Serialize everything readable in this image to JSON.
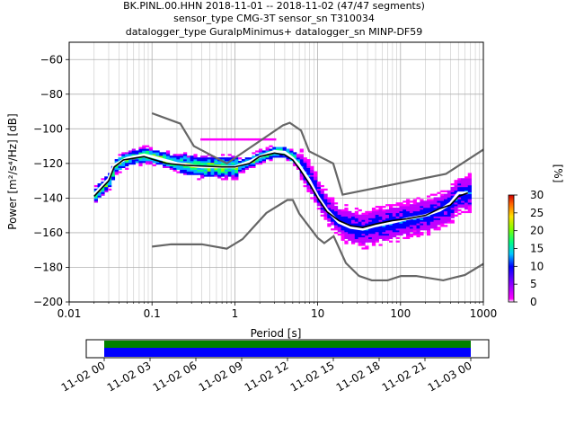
{
  "chart_data": {
    "type": "heatmap",
    "title_lines": [
      "BK.PINL.00.HHN   2018-11-01 -- 2018-11-02  (47/47 segments)",
      "sensor_type CMG-3T sensor_sn T310034",
      "datalogger_type GuralpMinimus+ datalogger_sn MINP-DF59"
    ],
    "xlabel": "Period [s]",
    "ylabel": "Power [m²/s⁴/Hz] [dB]",
    "x_scale": "log",
    "xlim": [
      0.01,
      1000
    ],
    "ylim": [
      -200,
      -50
    ],
    "x_ticks": [
      {
        "value": 0.01,
        "label": "0.01"
      },
      {
        "value": 0.1,
        "label": "0.1"
      },
      {
        "value": 1,
        "label": "1"
      },
      {
        "value": 10,
        "label": "10"
      },
      {
        "value": 100,
        "label": "100"
      },
      {
        "value": 1000,
        "label": "1000"
      }
    ],
    "y_ticks": [
      {
        "value": -60,
        "label": "−60"
      },
      {
        "value": -80,
        "label": "−80"
      },
      {
        "value": -100,
        "label": "−100"
      },
      {
        "value": -120,
        "label": "−120"
      },
      {
        "value": -140,
        "label": "−140"
      },
      {
        "value": -160,
        "label": "−160"
      },
      {
        "value": -180,
        "label": "−180"
      },
      {
        "value": -200,
        "label": "−200"
      }
    ],
    "grid": true,
    "colorbar": {
      "label": "[%]",
      "range": [
        0,
        30
      ],
      "ticks": [
        {
          "value": 0,
          "label": "0"
        },
        {
          "value": 5,
          "label": "5"
        },
        {
          "value": 10,
          "label": "10"
        },
        {
          "value": 15,
          "label": "15"
        },
        {
          "value": 20,
          "label": "20"
        },
        {
          "value": 25,
          "label": "25"
        },
        {
          "value": 30,
          "label": "30"
        }
      ]
    },
    "noise_models": {
      "color": "#666666",
      "new_high_noise_model": [
        [
          0.1,
          -91
        ],
        [
          0.22,
          -97
        ],
        [
          0.32,
          -110
        ],
        [
          0.8,
          -120
        ],
        [
          3.8,
          -98
        ],
        [
          4.6,
          -96.5
        ],
        [
          6.3,
          -101
        ],
        [
          7.9,
          -113
        ],
        [
          15.4,
          -120
        ],
        [
          20,
          -138
        ],
        [
          354,
          -126
        ],
        [
          1000,
          -112
        ]
      ],
      "new_low_noise_model": [
        [
          0.1,
          -168
        ],
        [
          0.17,
          -166.7
        ],
        [
          0.4,
          -166.7
        ],
        [
          0.8,
          -169.2
        ],
        [
          1.24,
          -163.7
        ],
        [
          2.4,
          -148.6
        ],
        [
          4.3,
          -141.1
        ],
        [
          5.0,
          -141.1
        ],
        [
          6.0,
          -149
        ],
        [
          10,
          -163
        ],
        [
          12,
          -166
        ],
        [
          15.6,
          -162
        ],
        [
          21.9,
          -177.5
        ],
        [
          31.6,
          -185
        ],
        [
          45,
          -187.5
        ],
        [
          70,
          -187.5
        ],
        [
          101,
          -185
        ],
        [
          154,
          -185
        ],
        [
          328,
          -187.5
        ],
        [
          600,
          -184.4
        ],
        [
          1000,
          -178
        ]
      ]
    },
    "mean_psd": [
      [
        0.02,
        -139
      ],
      [
        0.025,
        -134
      ],
      [
        0.03,
        -130
      ],
      [
        0.035,
        -122
      ],
      [
        0.045,
        -118
      ],
      [
        0.06,
        -117
      ],
      [
        0.08,
        -116
      ],
      [
        0.1,
        -117.5
      ],
      [
        0.15,
        -120
      ],
      [
        0.25,
        -121
      ],
      [
        0.4,
        -121.5
      ],
      [
        0.7,
        -122
      ],
      [
        1.0,
        -122
      ],
      [
        1.5,
        -120
      ],
      [
        2.0,
        -116
      ],
      [
        3.0,
        -114
      ],
      [
        4.0,
        -115
      ],
      [
        5.0,
        -118
      ],
      [
        6.0,
        -123
      ],
      [
        8.0,
        -132
      ],
      [
        10,
        -140
      ],
      [
        13,
        -148
      ],
      [
        18,
        -153
      ],
      [
        25,
        -156
      ],
      [
        35,
        -157
      ],
      [
        50,
        -155
      ],
      [
        80,
        -153
      ],
      [
        120,
        -152
      ],
      [
        200,
        -150
      ],
      [
        300,
        -146
      ],
      [
        400,
        -144
      ],
      [
        500,
        -139
      ],
      [
        650,
        -137
      ]
    ],
    "mode_psd": [
      [
        0.02,
        -138
      ],
      [
        0.03,
        -129
      ],
      [
        0.035,
        -121
      ],
      [
        0.05,
        -117
      ],
      [
        0.08,
        -115
      ],
      [
        0.1,
        -116
      ],
      [
        0.2,
        -120
      ],
      [
        0.4,
        -122
      ],
      [
        0.8,
        -122
      ],
      [
        1.0,
        -122
      ],
      [
        1.5,
        -119
      ],
      [
        2.0,
        -116
      ],
      [
        3.0,
        -113
      ],
      [
        4.0,
        -113.5
      ],
      [
        5.0,
        -117
      ],
      [
        6.0,
        -121
      ],
      [
        8.0,
        -130
      ],
      [
        10,
        -139
      ],
      [
        13,
        -147
      ],
      [
        18,
        -154
      ],
      [
        25,
        -157
      ],
      [
        35,
        -158
      ],
      [
        50,
        -156
      ],
      [
        80,
        -154
      ],
      [
        120,
        -152
      ],
      [
        200,
        -150
      ],
      [
        300,
        -147
      ],
      [
        400,
        -143
      ],
      [
        500,
        -137
      ],
      [
        650,
        -137
      ]
    ],
    "data_availability": {
      "tick_labels": [
        "11-02 00",
        "11-02 03",
        "11-02 06",
        "11-02 09",
        "11-02 12",
        "11-02 15",
        "11-02 18",
        "11-02 21",
        "11-03 00"
      ],
      "colors": {
        "data": "#0000ff",
        "processed": "#008000"
      }
    }
  }
}
